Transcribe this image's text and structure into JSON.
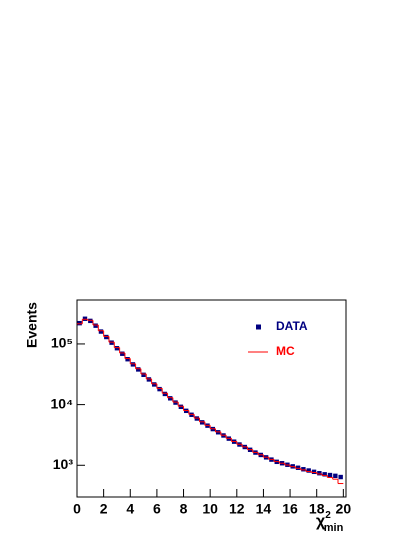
{
  "chart_data": {
    "type": "histogram",
    "y_label": "Events",
    "x_label": [
      "χ",
      "2",
      "min"
    ],
    "bins": [
      0,
      0.4,
      0.8,
      1.2,
      1.6,
      2,
      2.4,
      2.8,
      3.2,
      3.6,
      4,
      4.4,
      4.8,
      5.2,
      5.6,
      6,
      6.4,
      6.8,
      7.2,
      7.6,
      8,
      8.4,
      8.8,
      9.2,
      9.6,
      10,
      10.4,
      10.8,
      11.2,
      11.6,
      12,
      12.4,
      12.8,
      13.2,
      13.6,
      14,
      14.4,
      14.8,
      15.2,
      15.6,
      16,
      16.4,
      16.8,
      17.2,
      17.6,
      18,
      18.4,
      18.8,
      19.2,
      19.6,
      20
    ],
    "series": [
      {
        "name": "DATA",
        "color": "#000080",
        "style": "markers",
        "values": [
          220000,
          260000,
          240000,
          200000,
          160000,
          130000,
          105000,
          85000,
          69000,
          56000,
          46000,
          38000,
          31000,
          26000,
          21500,
          18000,
          15000,
          12700,
          10800,
          9200,
          7900,
          6800,
          5900,
          5100,
          4500,
          3950,
          3500,
          3100,
          2750,
          2450,
          2200,
          2000,
          1800,
          1620,
          1480,
          1350,
          1240,
          1140,
          1080,
          1020,
          960,
          910,
          860,
          820,
          780,
          740,
          710,
          690,
          670,
          640
        ]
      },
      {
        "name": "MC",
        "color": "#ff0000",
        "style": "step",
        "values": [
          215000,
          255000,
          245000,
          205000,
          165000,
          133000,
          107000,
          87000,
          71000,
          57500,
          47000,
          39000,
          32000,
          26500,
          22000,
          18500,
          15400,
          13000,
          11000,
          9400,
          8000,
          6900,
          6000,
          5200,
          4550,
          4000,
          3550,
          3130,
          2780,
          2470,
          2220,
          2010,
          1810,
          1630,
          1490,
          1360,
          1250,
          1150,
          1080,
          1010,
          950,
          890,
          840,
          790,
          760,
          720,
          680,
          630,
          590,
          500
        ]
      }
    ],
    "xlim": [
      0,
      20.2
    ],
    "xticks": [
      0,
      2,
      4,
      6,
      8,
      10,
      12,
      14,
      16,
      18,
      20
    ],
    "ylim": [
      300,
      530000
    ],
    "log_y": true,
    "yticks": [
      {
        "value": 1000,
        "label": "10³"
      },
      {
        "value": 10000,
        "label": "10⁴"
      },
      {
        "value": 100000,
        "label": "10⁵"
      }
    ],
    "legend": "upper right"
  }
}
